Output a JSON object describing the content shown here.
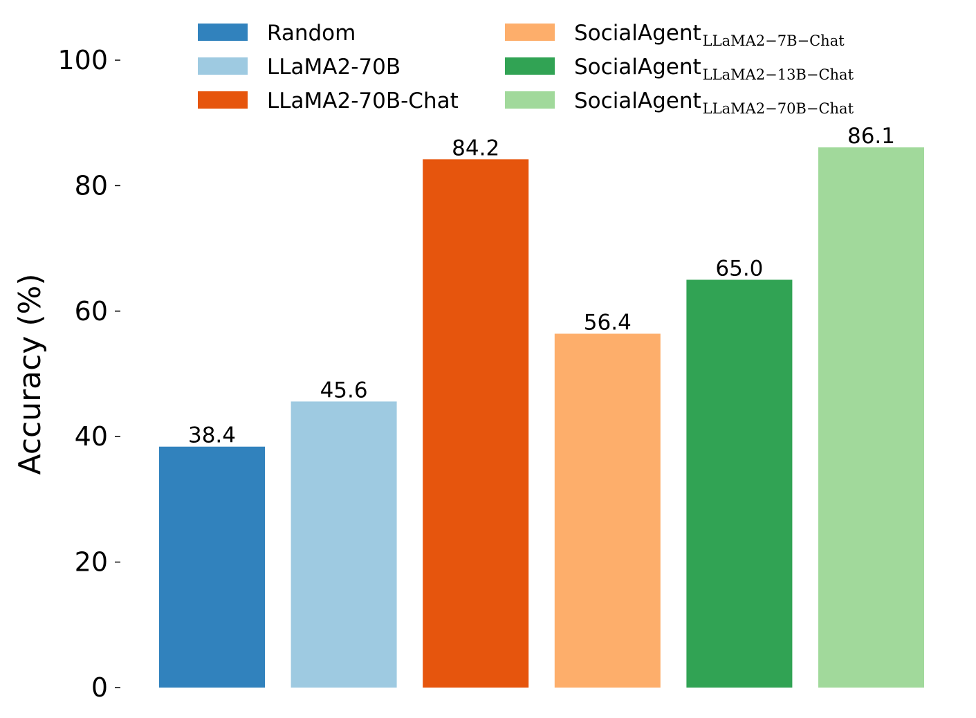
{
  "chart_data": {
    "type": "bar",
    "ylabel": "Accuracy (%)",
    "xlabel": "",
    "ylim": [
      0,
      100
    ],
    "yticks": [
      0,
      20,
      40,
      60,
      80,
      100
    ],
    "grid": false,
    "legend_position": "top",
    "series": [
      {
        "name": "Random",
        "name_main": "Random",
        "name_sub": "",
        "value": 38.4,
        "label": "38.4",
        "color": "#3182bd"
      },
      {
        "name": "LLaMA2-70B",
        "name_main": "LLaMA2-70B",
        "name_sub": "",
        "value": 45.6,
        "label": "45.6",
        "color": "#9ecae1"
      },
      {
        "name": "LLaMA2-70B-Chat",
        "name_main": "LLaMA2-70B-Chat",
        "name_sub": "",
        "value": 84.2,
        "label": "84.2",
        "color": "#e6550d"
      },
      {
        "name": "SocialAgent_LLaMA2-7B-Chat",
        "name_main": "SocialAgent",
        "name_sub": "LLaMA2−7B−Chat",
        "value": 56.4,
        "label": "56.4",
        "color": "#fdae6b"
      },
      {
        "name": "SocialAgent_LLaMA2-13B-Chat",
        "name_main": "SocialAgent",
        "name_sub": "LLaMA2−13B−Chat",
        "value": 65.0,
        "label": "65.0",
        "color": "#31a354"
      },
      {
        "name": "SocialAgent_LLaMA2-70B-Chat",
        "name_main": "SocialAgent",
        "name_sub": "LLaMA2−70B−Chat",
        "value": 86.1,
        "label": "86.1",
        "color": "#a1d99b"
      }
    ]
  }
}
